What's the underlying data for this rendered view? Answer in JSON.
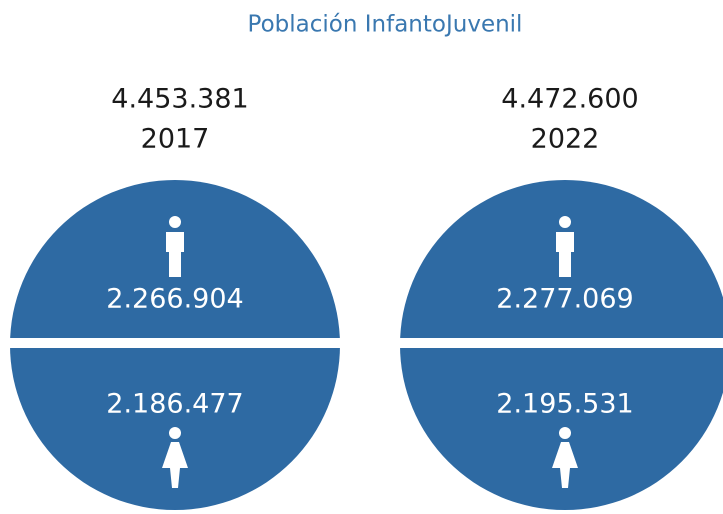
{
  "title": "Población InfantoJuvenil",
  "panels": [
    {
      "total": "4.453.381",
      "year": "2017",
      "male": "2.266.904",
      "female": "2.186.477"
    },
    {
      "total": "4.472.600",
      "year": "2022",
      "male": "2.277.069",
      "female": "2.195.531"
    }
  ]
}
